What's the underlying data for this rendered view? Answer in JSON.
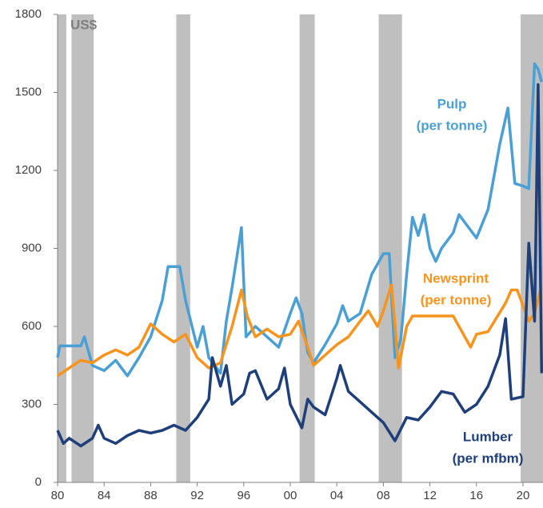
{
  "chart_data": {
    "type": "line",
    "axis_label": "US$",
    "xlim": [
      1980,
      2021.72
    ],
    "xticks": [
      {
        "value": 1980,
        "label": "80"
      },
      {
        "value": 1984,
        "label": "84"
      },
      {
        "value": 1988,
        "label": "88"
      },
      {
        "value": 1992,
        "label": "92"
      },
      {
        "value": 1996,
        "label": "96"
      },
      {
        "value": 2000,
        "label": "00"
      },
      {
        "value": 2004,
        "label": "04"
      },
      {
        "value": 2008,
        "label": "08"
      },
      {
        "value": 2012,
        "label": "12"
      },
      {
        "value": 2016,
        "label": "16"
      },
      {
        "value": 2020,
        "label": "20"
      }
    ],
    "ylim": [
      0,
      1800
    ],
    "yticks": [
      0,
      300,
      600,
      900,
      1200,
      1500,
      1800
    ],
    "shaded_periods": [
      [
        1980,
        1980.75
      ],
      [
        1981.2,
        1983.1
      ],
      [
        1990.2,
        1991.4
      ],
      [
        2000.8,
        2002.1
      ],
      [
        2007.6,
        2009.6
      ],
      [
        2019.8,
        2021.72
      ]
    ],
    "shade_color": "#bfbfbf",
    "series": [
      {
        "name": "Pulp",
        "label_lines": [
          "Pulp",
          "(per tonne)"
        ],
        "color": "#4a9fd4",
        "x": [
          1980,
          1980.2,
          1982,
          1982.3,
          1983,
          1984,
          1985,
          1986,
          1987,
          1988,
          1989,
          1989.5,
          1990.5,
          1991,
          1992,
          1992.5,
          1993,
          1994,
          1994.5,
          1995,
          1995.8,
          1996.2,
          1997,
          1998,
          1999,
          2000,
          2000.5,
          2001,
          2001.5,
          2002,
          2003,
          2004,
          2004.5,
          2005,
          2006,
          2007,
          2008,
          2008.5,
          2009,
          2009.5,
          2010,
          2010.5,
          2011,
          2011.5,
          2012,
          2012.5,
          2013,
          2014,
          2014.5,
          2015,
          2016,
          2017,
          2018,
          2018.7,
          2019.3,
          2020,
          2020.5,
          2021,
          2021.3,
          2021.6
        ],
        "values": [
          480,
          525,
          525,
          560,
          450,
          430,
          470,
          410,
          480,
          560,
          700,
          830,
          830,
          700,
          520,
          600,
          480,
          420,
          620,
          750,
          980,
          560,
          600,
          560,
          520,
          650,
          710,
          650,
          500,
          460,
          530,
          610,
          680,
          620,
          650,
          800,
          880,
          880,
          480,
          550,
          800,
          1020,
          950,
          1030,
          900,
          850,
          900,
          960,
          1030,
          1000,
          940,
          1050,
          1300,
          1440,
          1150,
          1140,
          1130,
          1610,
          1590,
          1540
        ]
      },
      {
        "name": "Newsprint",
        "label_lines": [
          "Newsprint",
          "(per tonne)"
        ],
        "color": "#f7941d",
        "x": [
          1980,
          1981,
          1982,
          1983,
          1984,
          1985,
          1986,
          1987,
          1988,
          1989,
          1990,
          1991,
          1992,
          1993,
          1994,
          1995,
          1995.8,
          1996.3,
          1997,
          1998,
          1999,
          2000,
          2000.7,
          2001.5,
          2002,
          2003,
          2004,
          2005,
          2006,
          2006.7,
          2007.5,
          2008,
          2008.7,
          2009.3,
          2010,
          2010.5,
          2014,
          2015,
          2015.5,
          2016,
          2017,
          2018.5,
          2019,
          2019.5,
          2020.5,
          2021,
          2021.5
        ],
        "values": [
          410,
          440,
          470,
          460,
          490,
          510,
          490,
          520,
          610,
          570,
          540,
          570,
          480,
          440,
          460,
          600,
          740,
          640,
          560,
          590,
          560,
          570,
          620,
          520,
          450,
          490,
          530,
          560,
          620,
          660,
          600,
          660,
          760,
          440,
          600,
          640,
          640,
          560,
          520,
          570,
          580,
          690,
          740,
          740,
          620,
          650,
          740
        ]
      },
      {
        "name": "Lumber",
        "label_lines": [
          "Lumber",
          "(per mfbm)"
        ],
        "color": "#1f3f7a",
        "x": [
          1980,
          1980.5,
          1981,
          1982,
          1983,
          1983.5,
          1984,
          1985,
          1986,
          1987,
          1988,
          1989,
          1990,
          1991,
          1992,
          1993,
          1993.3,
          1994,
          1994.5,
          1995,
          1996,
          1996.5,
          1997,
          1998,
          1999,
          1999.5,
          2000,
          2001,
          2001.5,
          2002,
          2003,
          2004,
          2004.3,
          2005,
          2006,
          2007,
          2008,
          2009,
          2010,
          2011,
          2012,
          2013,
          2014,
          2015,
          2016,
          2017,
          2018,
          2018.5,
          2019,
          2020,
          2020.5,
          2021,
          2021.3,
          2021.6
        ],
        "values": [
          200,
          150,
          170,
          140,
          170,
          220,
          170,
          150,
          180,
          200,
          190,
          200,
          220,
          200,
          250,
          320,
          480,
          370,
          450,
          300,
          340,
          420,
          430,
          320,
          360,
          440,
          300,
          210,
          320,
          290,
          260,
          400,
          450,
          350,
          310,
          270,
          230,
          160,
          250,
          240,
          290,
          350,
          340,
          270,
          300,
          370,
          490,
          630,
          320,
          330,
          920,
          620,
          1530,
          420
        ]
      }
    ]
  }
}
